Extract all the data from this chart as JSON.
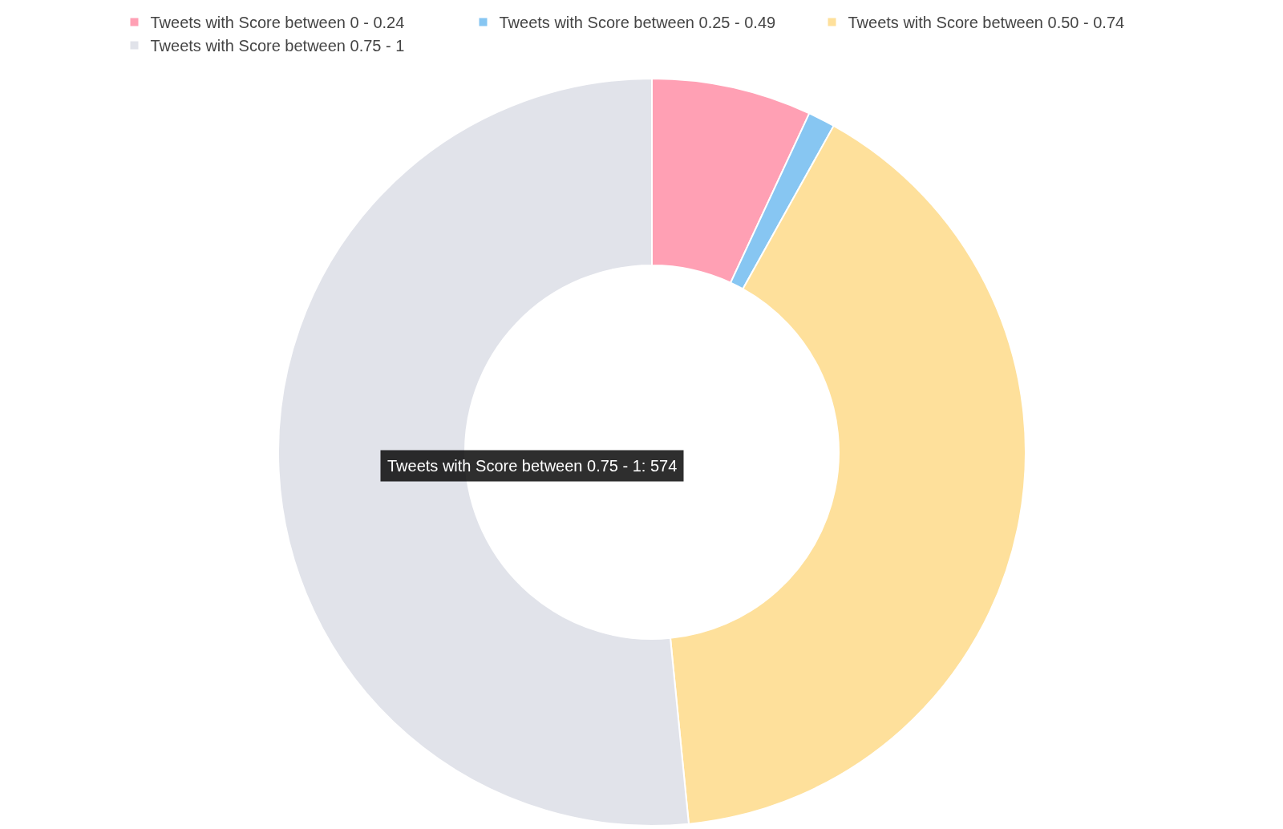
{
  "chart_data": {
    "type": "donut",
    "categories": [
      "Tweets with Score between 0 - 0.24",
      "Tweets with Score between 0.25 - 0.49",
      "Tweets with Score between 0.50 - 0.74",
      "Tweets with Score between 0.75 - 1"
    ],
    "values": [
      77,
      13,
      449,
      574
    ],
    "colors": [
      "#ffa0b4",
      "#87c6f2",
      "#fee09b",
      "#e1e3ea"
    ],
    "value_labels": [
      null,
      null,
      null,
      "Tweets with Score between 0.75 - 1: 574"
    ],
    "legend": "top"
  }
}
